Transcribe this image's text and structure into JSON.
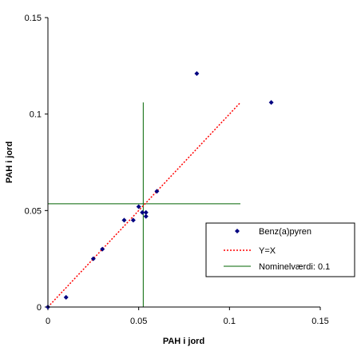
{
  "chart_data": {
    "type": "scatter",
    "title": "",
    "xlabel": "PAH i jord",
    "ylabel": "PAH i jord",
    "xlim": [
      0,
      0.15
    ],
    "ylim": [
      0,
      0.15
    ],
    "x_ticks": [
      "0",
      "0.05",
      "0.1",
      "0.15"
    ],
    "y_ticks": [
      "0",
      "0.05",
      "0.1",
      "0.15"
    ],
    "grid": false,
    "legend_position": "lower-right",
    "series": [
      {
        "name": "Benz(a)pyren",
        "kind": "points",
        "marker": "diamond",
        "color": "#000080",
        "points": [
          {
            "x": 0.0,
            "y": 0.0
          },
          {
            "x": 0.01,
            "y": 0.005
          },
          {
            "x": 0.025,
            "y": 0.025
          },
          {
            "x": 0.03,
            "y": 0.03
          },
          {
            "x": 0.042,
            "y": 0.045
          },
          {
            "x": 0.047,
            "y": 0.045
          },
          {
            "x": 0.05,
            "y": 0.052
          },
          {
            "x": 0.052,
            "y": 0.049
          },
          {
            "x": 0.054,
            "y": 0.049
          },
          {
            "x": 0.054,
            "y": 0.047
          },
          {
            "x": 0.06,
            "y": 0.06
          },
          {
            "x": 0.082,
            "y": 0.121
          },
          {
            "x": 0.123,
            "y": 0.106
          }
        ]
      },
      {
        "name": "Y=X",
        "kind": "dotted-line",
        "color": "#ff0000",
        "points": [
          {
            "x": 0.0,
            "y": 0.0
          },
          {
            "x": 0.106,
            "y": 0.106
          }
        ]
      },
      {
        "name": "Nominelværdi: 0.1",
        "kind": "reference-lines",
        "color": "#006400",
        "vertical": {
          "x": 0.0525,
          "y_from": 0.0,
          "y_to": 0.106
        },
        "horizontal": {
          "y": 0.0535,
          "x_from": 0.0,
          "x_to": 0.106
        }
      }
    ]
  }
}
